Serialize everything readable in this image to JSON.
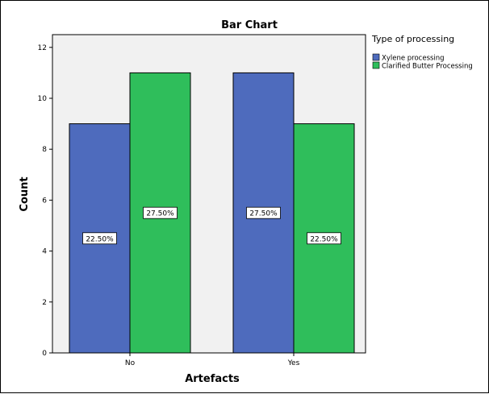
{
  "chart_data": {
    "type": "bar",
    "title": "Bar Chart",
    "xlabel": "Artefacts",
    "ylabel": "Count",
    "categories": [
      "No",
      "Yes"
    ],
    "ylim": [
      0,
      12.5
    ],
    "yticks": [
      0,
      2,
      4,
      6,
      8,
      10,
      12
    ],
    "series": [
      {
        "name": "Xylene processing",
        "color": "#4e6bbd",
        "values": [
          9,
          11
        ],
        "labels": [
          "22.50%",
          "27.50%"
        ]
      },
      {
        "name": "Clarified Butter Processing",
        "color": "#2fbe5b",
        "values": [
          11,
          9
        ],
        "labels": [
          "27.50%",
          "22.50%"
        ]
      }
    ],
    "legend": {
      "title": "Type of processing",
      "position": "right"
    },
    "plot_background": "#f1f1f1",
    "grid": false
  }
}
